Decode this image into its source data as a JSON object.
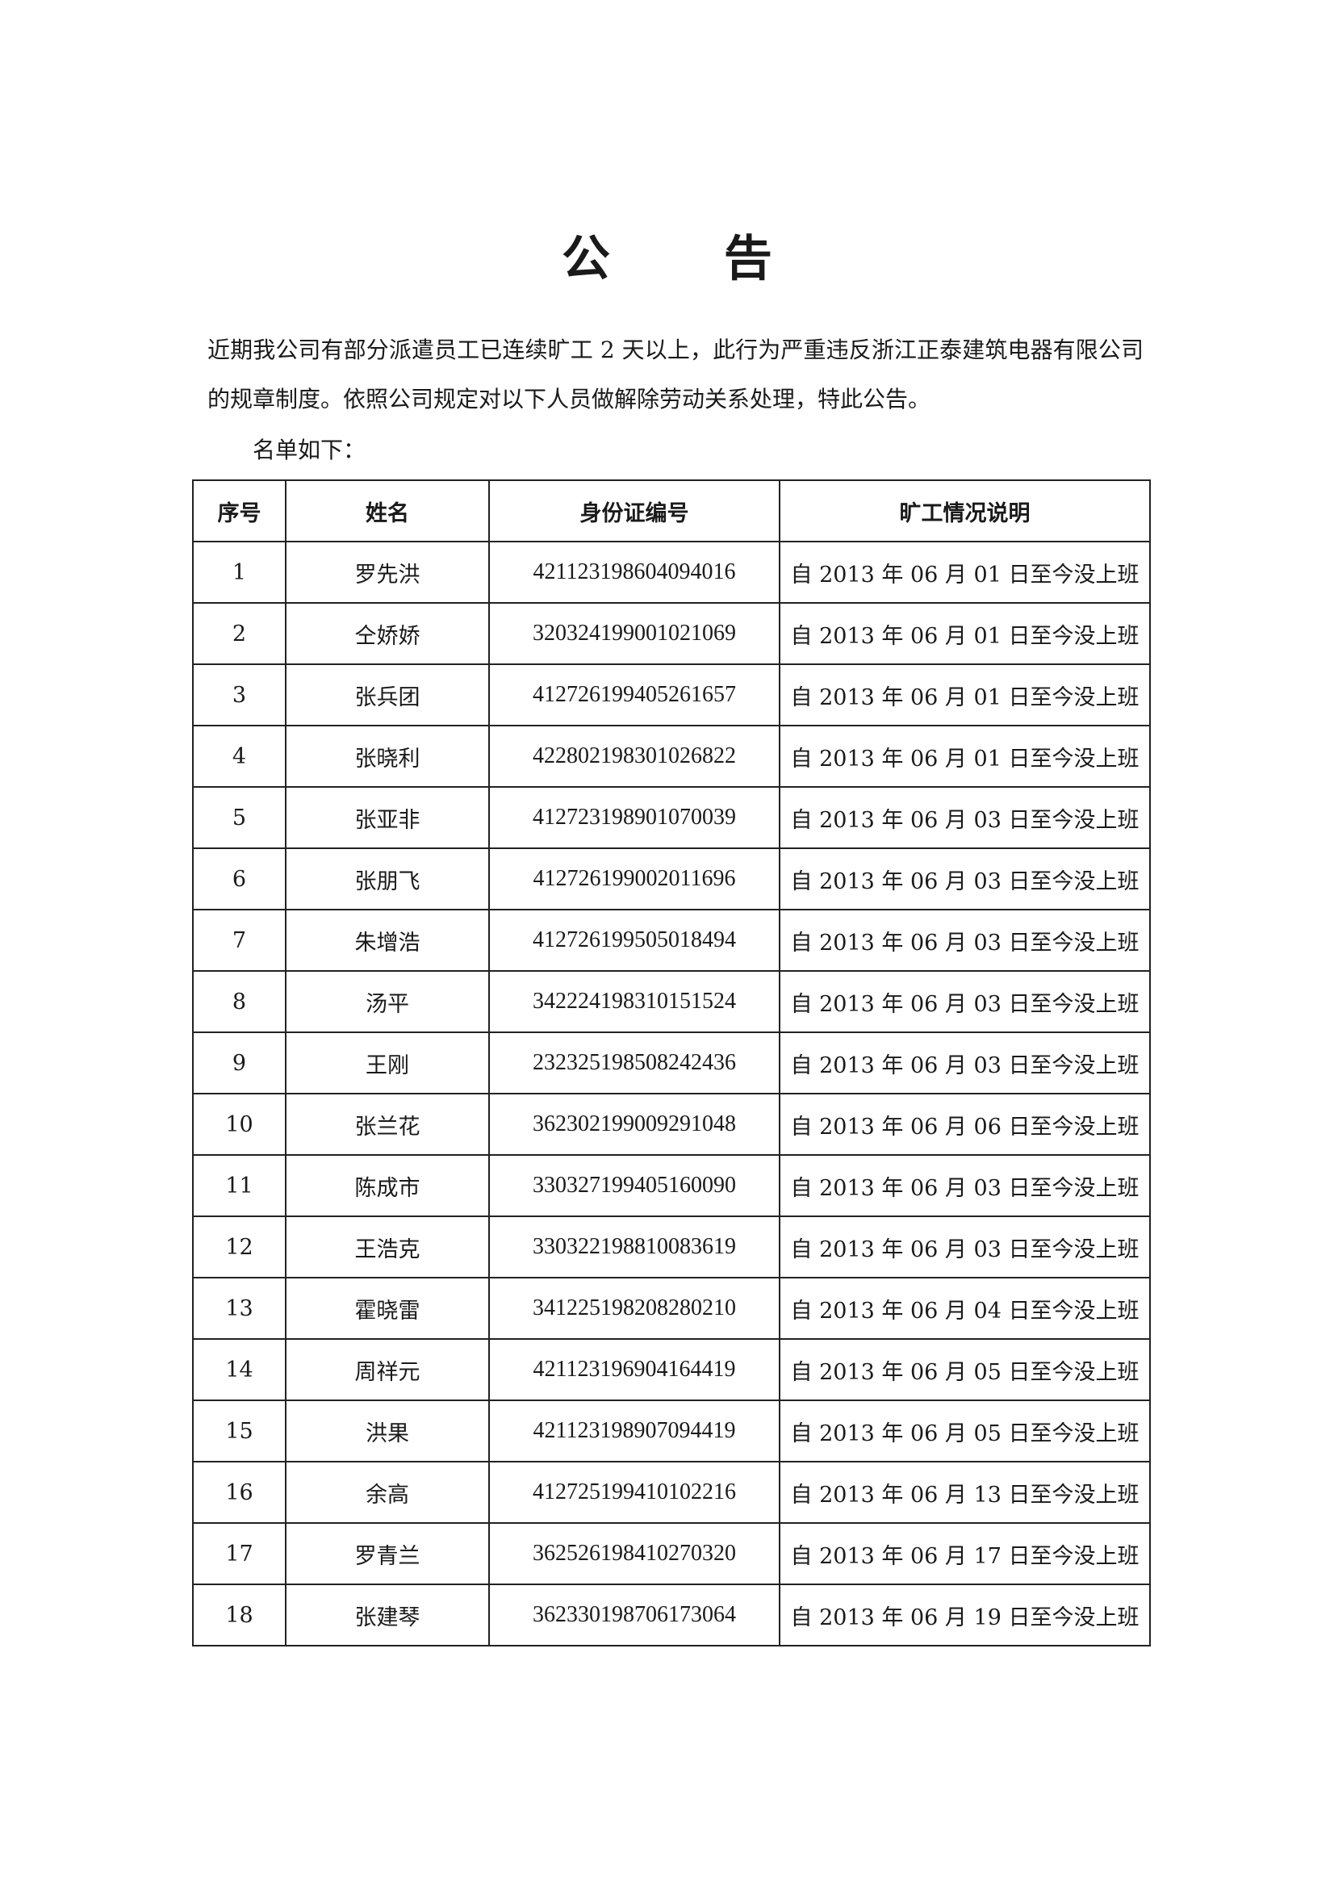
{
  "title": "公 告",
  "paragraph": "近期我公司有部分派遣员工已连续旷工 2 天以上，此行为严重违反浙江正泰建筑电器有限公司的规章制度。依照公司规定对以下人员做解除劳动关系处理，特此公告。",
  "list_label": "名单如下：",
  "table": {
    "headers": [
      "序号",
      "姓名",
      "身份证编号",
      "旷工情况说明"
    ],
    "rows": [
      [
        "1",
        "罗先洪",
        "421123198604094016",
        "自 2013 年 06 月 01 日至今没上班"
      ],
      [
        "2",
        "仝娇娇",
        "320324199001021069",
        "自 2013 年 06 月 01 日至今没上班"
      ],
      [
        "3",
        "张兵团",
        "412726199405261657",
        "自 2013 年 06 月 01 日至今没上班"
      ],
      [
        "4",
        "张晓利",
        "422802198301026822",
        "自 2013 年 06 月 01 日至今没上班"
      ],
      [
        "5",
        "张亚非",
        "412723198901070039",
        "自 2013 年 06 月 03 日至今没上班"
      ],
      [
        "6",
        "张朋飞",
        "412726199002011696",
        "自 2013 年 06 月 03 日至今没上班"
      ],
      [
        "7",
        "朱增浩",
        "412726199505018494",
        "自 2013 年 06 月 03 日至今没上班"
      ],
      [
        "8",
        "汤平",
        "342224198310151524",
        "自 2013 年 06 月 03 日至今没上班"
      ],
      [
        "9",
        "王刚",
        "232325198508242436",
        "自 2013 年 06 月 03 日至今没上班"
      ],
      [
        "10",
        "张兰花",
        "362302199009291048",
        "自 2013 年 06 月 06 日至今没上班"
      ],
      [
        "11",
        "陈成市",
        "330327199405160090",
        "自 2013 年 06 月 03 日至今没上班"
      ],
      [
        "12",
        "王浩克",
        "330322198810083619",
        "自 2013 年 06 月 03 日至今没上班"
      ],
      [
        "13",
        "霍晓雷",
        "341225198208280210",
        "自 2013 年 06 月 04 日至今没上班"
      ],
      [
        "14",
        "周祥元",
        "421123196904164419",
        "自 2013 年 06 月 05 日至今没上班"
      ],
      [
        "15",
        "洪果",
        "421123198907094419",
        "自 2013 年 06 月 05 日至今没上班"
      ],
      [
        "16",
        "余高",
        "412725199410102216",
        "自 2013 年 06 月 13 日至今没上班"
      ],
      [
        "17",
        "罗青兰",
        "362526198410270320",
        "自 2013 年 06 月 17 日至今没上班"
      ],
      [
        "18",
        "张建琴",
        "362330198706173064",
        "自 2013 年 06 月 19 日至今没上班"
      ]
    ]
  }
}
